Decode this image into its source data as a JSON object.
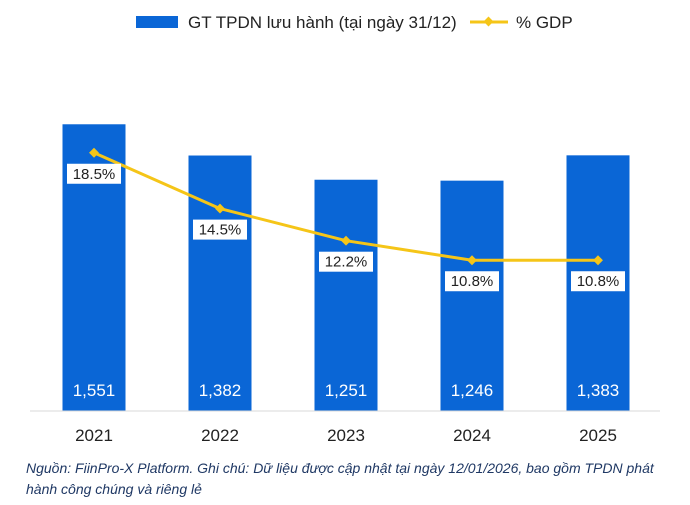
{
  "chart_data": {
    "type": "bar",
    "categories": [
      "2021",
      "2022",
      "2023",
      "2024",
      "2025"
    ],
    "series": [
      {
        "name": "GT TPDN lưu hành (tại ngày 31/12)",
        "kind": "bar",
        "values": [
          1551,
          1382,
          1251,
          1246,
          1383
        ],
        "labels": [
          "1,551",
          "1,382",
          "1,251",
          "1,246",
          "1,383"
        ],
        "color": "#0a66d6"
      },
      {
        "name": "% GDP",
        "kind": "line",
        "values": [
          18.5,
          14.5,
          12.2,
          10.8,
          10.8
        ],
        "labels": [
          "18.5%",
          "14.5%",
          "12.2%",
          "10.8%",
          "10.8%"
        ],
        "color": "#f5c518"
      }
    ],
    "ylim_bar": [
      0,
      1850
    ],
    "ylim_line": [
      0,
      24.5
    ],
    "legend": "top",
    "grid": false
  },
  "note": "Nguồn: FiinPro-X Platform. Ghi chú: Dữ liệu được cập nhật tại ngày 12/01/2026, bao gồm TPDN phát hành công chúng và riêng lẻ"
}
